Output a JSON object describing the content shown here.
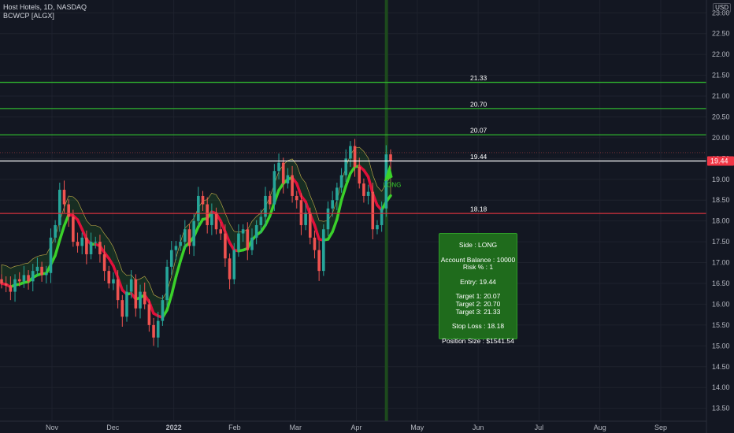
{
  "legend": {
    "title": "Host Hotels, 1D, NASDAQ",
    "indicator": "BCWCP [ALGX]"
  },
  "currency": "USD",
  "colors": {
    "background": "#131722",
    "grid": "#1e222d",
    "up": "#26a69a",
    "down": "#ef5350",
    "target_line": "#2fb62f",
    "stop_line": "#d6323c",
    "entry_line": "#ffffff",
    "price_tag": "#f23645",
    "band_green": "#3ad12a",
    "band_red": "#e0103a",
    "vertical_marker": "#1d4a1d"
  },
  "chart_data": {
    "type": "candlestick",
    "x_ticks": [
      "Nov",
      "Dec",
      "2022",
      "Feb",
      "Mar",
      "Apr",
      "May",
      "Jun",
      "Jul",
      "Aug",
      "Sep"
    ],
    "y_ticks": [
      "13.50",
      "14.00",
      "14.50",
      "15.00",
      "15.50",
      "16.00",
      "16.50",
      "17.00",
      "17.50",
      "18.00",
      "18.50",
      "19.00",
      "19.50",
      "20.00",
      "20.50",
      "21.00",
      "21.50",
      "22.00",
      "22.50",
      "23.00"
    ],
    "ylim": [
      13.2,
      23.2
    ],
    "levels": [
      {
        "label": "21.33",
        "value": 21.33,
        "kind": "target"
      },
      {
        "label": "20.70",
        "value": 20.7,
        "kind": "target"
      },
      {
        "label": "20.07",
        "value": 20.07,
        "kind": "target"
      },
      {
        "label": "19.44",
        "value": 19.44,
        "kind": "entry"
      },
      {
        "label": "18.18",
        "value": 18.18,
        "kind": "stop"
      }
    ],
    "last_price": "19.44",
    "signal_label": "LONG",
    "candles_close": [
      16.5,
      16.45,
      16.3,
      16.6,
      16.55,
      16.7,
      16.55,
      16.8,
      16.9,
      16.7,
      16.75,
      17.6,
      17.9,
      18.75,
      18.4,
      18.1,
      17.5,
      17.4,
      17.6,
      17.2,
      17.5,
      17.5,
      17.2,
      16.8,
      16.5,
      16.6,
      16.1,
      15.7,
      16.3,
      16.6,
      15.9,
      16.3,
      16.0,
      15.5,
      15.2,
      15.6,
      16.1,
      16.9,
      17.3,
      17.4,
      17.5,
      17.8,
      17.4,
      18.0,
      18.6,
      18.4,
      17.9,
      18.2,
      17.8,
      17.7,
      17.1,
      16.6,
      17.3,
      17.7,
      17.8,
      17.3,
      17.6,
      17.9,
      18.1,
      18.6,
      18.4,
      19.2,
      19.4,
      18.9,
      19.1,
      18.6,
      18.5,
      17.9,
      18.2,
      17.6,
      17.3,
      16.8,
      17.8,
      18.3,
      18.5,
      18.8,
      19.1,
      19.5,
      19.8,
      19.3,
      18.9,
      18.6,
      18.7,
      17.8,
      17.9,
      18.3,
      19.6,
      19.44
    ],
    "vertical_marker_index": 85
  },
  "infobox": {
    "side": "Side : LONG",
    "balance": "Account Balance : 10000",
    "risk": "Risk % : 1",
    "entry": "Entry: 19.44",
    "target1": "Target 1: 20.07",
    "target2": "Target 2: 20.70",
    "target3": "Target 3: 21.33",
    "stop": "Stop Loss : 18.18",
    "size": "Position Size : $1541.54"
  }
}
